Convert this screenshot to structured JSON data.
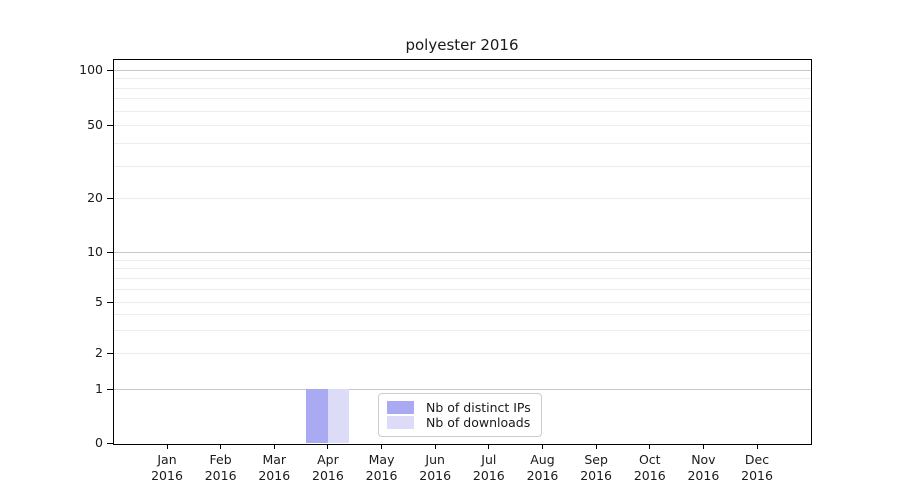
{
  "page": {
    "background": "#ffffff"
  },
  "chart_data": {
    "type": "bar",
    "title": "polyester 2016",
    "categories": [
      "Jan 2016",
      "Feb 2016",
      "Mar 2016",
      "Apr 2016",
      "May 2016",
      "Jun 2016",
      "Jul 2016",
      "Aug 2016",
      "Sep 2016",
      "Oct 2016",
      "Nov 2016",
      "Dec 2016"
    ],
    "series": [
      {
        "name": "Nb of distinct IPs",
        "color": "#aaaaf2",
        "values": [
          0,
          0,
          0,
          1,
          0,
          0,
          0,
          0,
          0,
          0,
          0,
          0
        ]
      },
      {
        "name": "Nb of downloads",
        "color": "#dcdcf9",
        "values": [
          0,
          0,
          0,
          1,
          0,
          0,
          0,
          0,
          0,
          0,
          0,
          0
        ]
      }
    ],
    "xlabel": "",
    "ylabel": "",
    "yscale": "symlog",
    "ylim": [
      0,
      100
    ],
    "y_ticks": [
      0,
      1,
      2,
      5,
      10,
      20,
      50,
      100
    ],
    "y_major_gridlines": [
      1,
      10,
      100
    ],
    "y_minor_gridlines": [
      2,
      3,
      4,
      5,
      6,
      7,
      8,
      9,
      20,
      30,
      40,
      50,
      60,
      70,
      80,
      90
    ],
    "grid": true,
    "legend_position": "inside-bottom-center"
  },
  "colors": {
    "major_grid": "#c6c6c6",
    "minor_grid": "#ececec",
    "axis": "#000000",
    "text": "#1a1a1a",
    "legend_border": "#cccccc",
    "legend_bg": "#ffffff"
  }
}
